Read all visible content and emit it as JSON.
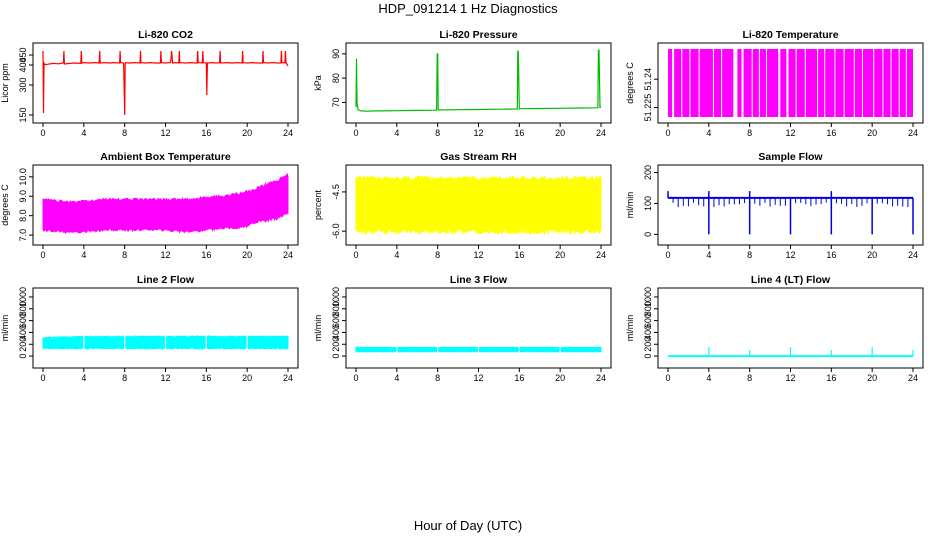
{
  "title": "HDP_091214  1 Hz Diagnostics",
  "xlabel": "Hour of Day (UTC)",
  "chart_data": [
    {
      "type": "line",
      "title": "Li-820 CO2",
      "ylabel": "Licor ppm",
      "color": "#ff0000",
      "xlim": [
        0,
        24
      ],
      "ylim": [
        140,
        480
      ],
      "xticks": [
        0,
        4,
        8,
        12,
        16,
        20,
        24
      ],
      "yticks": [
        150,
        300,
        400,
        450
      ],
      "series": [
        {
          "x": [
            0,
            0.05,
            0.1,
            0.2,
            0.5,
            1,
            1.5,
            2,
            2.05,
            2.1,
            3,
            3.7,
            3.75,
            3.8,
            4,
            4.5,
            5,
            5.5,
            5.55,
            5.6,
            6,
            6.5,
            7,
            7.5,
            7.55,
            7.6,
            7.9,
            8,
            8.05,
            8.1,
            8.5,
            9,
            9.5,
            9.55,
            9.6,
            10,
            10.5,
            11,
            11.5,
            11.55,
            11.6,
            12,
            12.5,
            12.6,
            12.7,
            13,
            13.3,
            13.35,
            13.4,
            14,
            14.5,
            15,
            15.1,
            15.15,
            15.2,
            15.6,
            15.65,
            15.7,
            16,
            16.05,
            16.1,
            16.5,
            17,
            17.3,
            17.35,
            17.4,
            18,
            18.5,
            19,
            19.5,
            19.55,
            19.6,
            20,
            20.5,
            21,
            21.5,
            21.55,
            21.6,
            22,
            22.5,
            23,
            23.3,
            23.35,
            23.4,
            23.7,
            23.75,
            23.8,
            24
          ],
          "y": [
            470,
            160,
            410,
            402,
            404,
            408,
            406,
            410,
            470,
            405,
            410,
            408,
            470,
            410,
            412,
            410,
            412,
            410,
            470,
            410,
            412,
            410,
            412,
            410,
            470,
            412,
            410,
            150,
            410,
            412,
            410,
            412,
            410,
            470,
            412,
            410,
            412,
            410,
            410,
            470,
            412,
            410,
            412,
            470,
            410,
            412,
            410,
            470,
            412,
            410,
            412,
            410,
            410,
            470,
            412,
            410,
            470,
            412,
            410,
            250,
            410,
            412,
            410,
            412,
            470,
            410,
            412,
            410,
            412,
            410,
            470,
            412,
            410,
            412,
            410,
            410,
            470,
            412,
            410,
            412,
            410,
            410,
            470,
            412,
            410,
            470,
            412,
            395
          ]
        }
      ]
    },
    {
      "type": "line",
      "title": "Li-820 Pressure",
      "ylabel": "kPa",
      "color": "#00bb00",
      "xlim": [
        0,
        24
      ],
      "ylim": [
        64,
        92
      ],
      "xticks": [
        0,
        4,
        8,
        12,
        16,
        20,
        24
      ],
      "yticks": [
        70,
        80,
        90
      ],
      "series": [
        {
          "x": [
            0,
            0.05,
            0.1,
            0.2,
            0.5,
            1,
            2,
            4,
            6,
            7.9,
            7.95,
            8,
            8.05,
            8.1,
            10,
            12,
            14,
            15.8,
            15.85,
            15.9,
            16,
            16.05,
            16.1,
            18,
            20,
            22,
            23.7,
            23.75,
            23.8,
            23.9,
            24
          ],
          "y": [
            68,
            88,
            70,
            67,
            66.5,
            66.4,
            66.5,
            66.6,
            66.7,
            66.8,
            90,
            90,
            67,
            66.9,
            67,
            67.1,
            67.2,
            67.3,
            91,
            91,
            67.3,
            67.4,
            67.4,
            67.5,
            67.6,
            67.7,
            67.8,
            91.5,
            91.5,
            67.9,
            68
          ]
        }
      ]
    },
    {
      "type": "area",
      "title": "Li-820 Temperature",
      "ylabel": "degrees C",
      "color": "#ff00ff",
      "xlim": [
        0,
        24
      ],
      "ylim": [
        51.22,
        51.256
      ],
      "xticks": [
        0,
        4,
        8,
        12,
        16,
        20,
        24
      ],
      "yticks": [
        51.225,
        51.24
      ],
      "band_intervals": [
        [
          0,
          0.4
        ],
        [
          0.6,
          1.3
        ],
        [
          1.4,
          2.1
        ],
        [
          2.2,
          3.0
        ],
        [
          3.1,
          4.4
        ],
        [
          4.5,
          5.2
        ],
        [
          5.3,
          6.4
        ],
        [
          6.8,
          7.2
        ],
        [
          7.4,
          8.2
        ],
        [
          8.3,
          8.9
        ],
        [
          9.0,
          9.6
        ],
        [
          9.7,
          10.8
        ],
        [
          11.0,
          11.6
        ],
        [
          11.8,
          12.5
        ],
        [
          12.6,
          13.4
        ],
        [
          13.5,
          14.6
        ],
        [
          14.7,
          15.3
        ],
        [
          15.4,
          16.3
        ],
        [
          16.4,
          17.2
        ],
        [
          17.3,
          18.2
        ],
        [
          18.3,
          19.0
        ],
        [
          19.1,
          20.1
        ],
        [
          20.2,
          21.0
        ],
        [
          21.1,
          21.8
        ],
        [
          21.9,
          22.6
        ],
        [
          22.7,
          23.3
        ],
        [
          23.4,
          24
        ]
      ],
      "band_range": [
        51.22,
        51.256
      ]
    },
    {
      "type": "area",
      "title": "Ambient Box Temperature",
      "ylabel": "degrees C",
      "color": "#ff00ff",
      "xlim": [
        0,
        24
      ],
      "ylim": [
        6.8,
        10.3
      ],
      "xticks": [
        0,
        4,
        8,
        12,
        16,
        20,
        24
      ],
      "yticks": [
        7.0,
        8.0,
        9.0,
        10.0
      ],
      "envelope": {
        "x": [
          0,
          2,
          4,
          6,
          8,
          10,
          12,
          14,
          16,
          18,
          19,
          20,
          21,
          22,
          23,
          24
        ],
        "upper": [
          8.9,
          8.8,
          8.8,
          8.9,
          8.9,
          8.9,
          8.9,
          8.9,
          9.0,
          9.1,
          9.2,
          9.3,
          9.5,
          9.7,
          9.9,
          10.2
        ],
        "lower": [
          7.2,
          7.1,
          7.1,
          7.2,
          7.2,
          7.2,
          7.2,
          7.1,
          7.2,
          7.3,
          7.3,
          7.4,
          7.6,
          7.7,
          7.8,
          8.0
        ]
      }
    },
    {
      "type": "area",
      "title": "Gas Stream RH",
      "ylabel": "percent",
      "color": "#ffff00",
      "xlim": [
        0,
        24
      ],
      "ylim": [
        -6.3,
        -3.7
      ],
      "xticks": [
        0,
        4,
        8,
        12,
        16,
        20,
        24
      ],
      "yticks": [
        -6.0,
        -4.5
      ],
      "envelope": {
        "x": [
          0,
          24
        ],
        "upper": [
          -3.9,
          -3.9
        ],
        "lower": [
          -6.1,
          -6.1
        ]
      }
    },
    {
      "type": "line",
      "title": "Sample Flow",
      "ylabel": "ml/min",
      "color": "#0000dd",
      "xlim": [
        0,
        24
      ],
      "ylim": [
        -15,
        205
      ],
      "xticks": [
        0,
        4,
        8,
        12,
        16,
        20,
        24
      ],
      "yticks": [
        0,
        100,
        200
      ],
      "baseline": 118,
      "dips_to_zero": [
        4,
        8,
        12,
        16,
        20,
        24
      ],
      "spikes": [
        0,
        4,
        8,
        16
      ]
    },
    {
      "type": "area",
      "title": "Line 2 Flow",
      "ylabel": "ml/min",
      "color": "#00ffff",
      "xlim": [
        0,
        24
      ],
      "ylim": [
        -100,
        1050
      ],
      "xticks": [
        0,
        4,
        8,
        12,
        16,
        20,
        24
      ],
      "yticks": [
        0,
        200,
        400,
        600,
        800,
        1000
      ],
      "envelope": {
        "x": [
          0,
          4,
          24
        ],
        "upper": [
          320,
          340,
          340
        ],
        "lower": [
          120,
          120,
          120
        ]
      },
      "gaps": [
        4,
        8,
        12,
        16,
        20
      ]
    },
    {
      "type": "area",
      "title": "Line 3 Flow",
      "ylabel": "ml/min",
      "color": "#00ffff",
      "xlim": [
        0,
        24
      ],
      "ylim": [
        -100,
        1050
      ],
      "xticks": [
        0,
        4,
        8,
        12,
        16,
        20,
        24
      ],
      "yticks": [
        0,
        200,
        400,
        600,
        800,
        1000
      ],
      "envelope": {
        "x": [
          0,
          24
        ],
        "upper": [
          150,
          150
        ],
        "lower": [
          70,
          70
        ]
      },
      "gaps": [
        4,
        8,
        12,
        16,
        20
      ]
    },
    {
      "type": "line",
      "title": "Line 4 (LT) Flow",
      "ylabel": "ml/min",
      "color": "#00ffff",
      "xlim": [
        0,
        24
      ],
      "ylim": [
        -100,
        1050
      ],
      "xticks": [
        0,
        4,
        8,
        12,
        16,
        20,
        24
      ],
      "yticks": [
        0,
        200,
        400,
        600,
        800,
        1000
      ],
      "baseline": 0,
      "spikes": [
        {
          "x": 4,
          "y": 150
        },
        {
          "x": 8,
          "y": 100
        },
        {
          "x": 12,
          "y": 150
        },
        {
          "x": 16,
          "y": 100
        },
        {
          "x": 20,
          "y": 150
        },
        {
          "x": 24,
          "y": 100
        }
      ]
    }
  ]
}
